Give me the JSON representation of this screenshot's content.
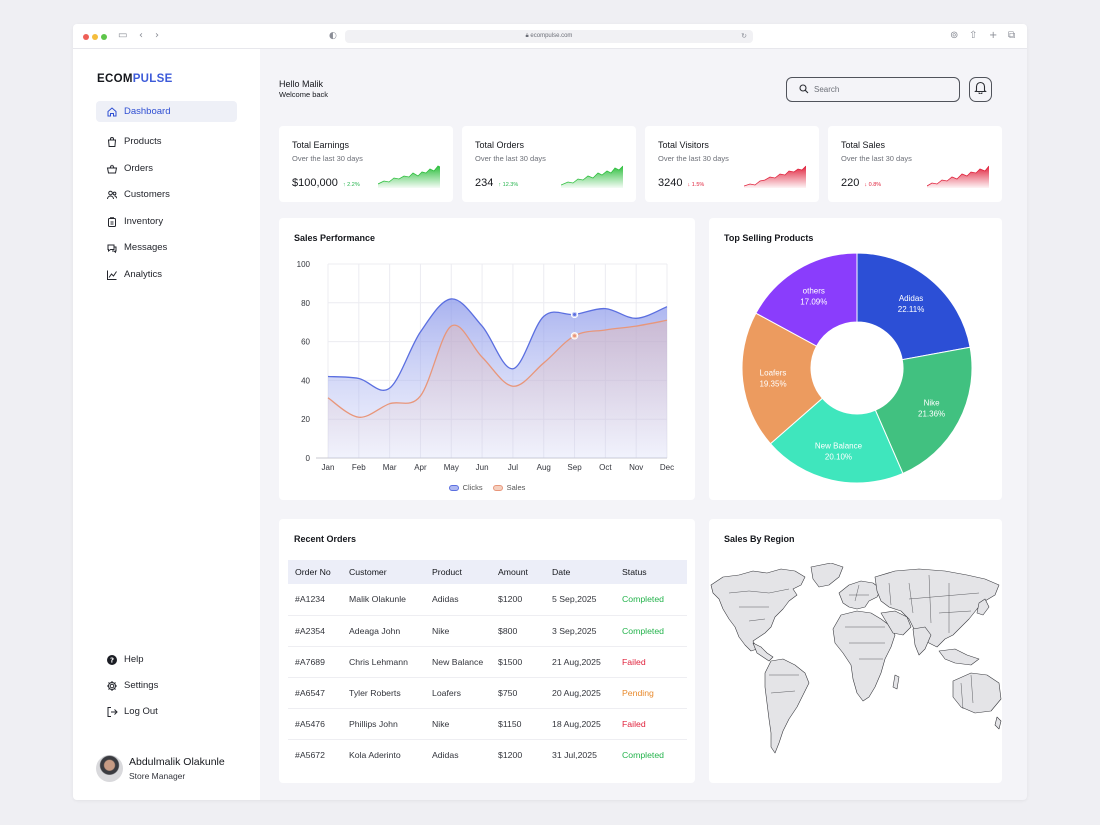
{
  "browser": {
    "url": "ecompulse.com"
  },
  "brand": {
    "prefix": "ECOM",
    "suffix": "PULSE"
  },
  "nav": {
    "main": [
      {
        "label": "Dashboard",
        "icon": "home-icon",
        "active": true
      },
      {
        "label": "Products",
        "icon": "bag-icon"
      },
      {
        "label": "Orders",
        "icon": "basket-icon"
      },
      {
        "label": "Customers",
        "icon": "users-icon"
      },
      {
        "label": "Inventory",
        "icon": "clipboard-icon"
      },
      {
        "label": "Messages",
        "icon": "chat-icon"
      },
      {
        "label": "Analytics",
        "icon": "chart-line-icon"
      }
    ],
    "bottom": [
      {
        "label": "Help",
        "icon": "help-icon"
      },
      {
        "label": "Settings",
        "icon": "gear-icon"
      },
      {
        "label": "Log Out",
        "icon": "logout-icon"
      }
    ]
  },
  "profile": {
    "name": "Abdulmalik Olakunle",
    "role": "Store Manager"
  },
  "header": {
    "greeting": "Hello Malik",
    "subtitle": "Welcome back",
    "search_placeholder": "Search"
  },
  "stats": [
    {
      "title": "Total Earnings",
      "period": "Over the last 30 days",
      "value": "$100,000",
      "delta": "↑ 2.2%",
      "trend": "up",
      "color": "#2fbf3f"
    },
    {
      "title": "Total Orders",
      "period": "Over the last 30 days",
      "value": "234",
      "delta": "↑ 12.3%",
      "trend": "up",
      "color": "#2fbf3f"
    },
    {
      "title": "Total Visitors",
      "period": "Over the last 30 days",
      "value": "3240",
      "delta": "↓ 1.5%",
      "trend": "down",
      "color": "#e0233d"
    },
    {
      "title": "Total Sales",
      "period": "Over the last 30 days",
      "value": "220",
      "delta": "↓ 0.8%",
      "trend": "down",
      "color": "#e0233d"
    }
  ],
  "sales_performance": {
    "title": "Sales Performance",
    "chart_data": {
      "type": "line",
      "categories": [
        "Jan",
        "Feb",
        "Mar",
        "Apr",
        "May",
        "Jun",
        "Jul",
        "Aug",
        "Sep",
        "Oct",
        "Nov",
        "Dec"
      ],
      "ylim": [
        0,
        100
      ],
      "yticks": [
        0,
        20,
        40,
        60,
        80,
        100
      ],
      "grid": true,
      "legend": "bottom",
      "series": [
        {
          "name": "Clicks",
          "color": "#5b6fe0",
          "values": [
            42,
            41,
            36,
            65,
            82,
            68,
            46,
            73,
            74,
            77,
            72,
            78
          ]
        },
        {
          "name": "Sales",
          "color": "#e8967a",
          "values": [
            31,
            21,
            28,
            32,
            68,
            52,
            37,
            49,
            63,
            66,
            68,
            71
          ]
        }
      ]
    }
  },
  "top_selling": {
    "title": "Top Selling Products",
    "chart_data": {
      "type": "pie",
      "donut": true,
      "slices": [
        {
          "label": "Adidas",
          "value": 22.11,
          "display": "22.11%",
          "color": "#2c4fd6"
        },
        {
          "label": "Nike",
          "value": 21.36,
          "display": "21.36%",
          "color": "#41c180"
        },
        {
          "label": "New Balance",
          "value": 20.1,
          "display": "20.10%",
          "color": "#3fe6bd"
        },
        {
          "label": "Loafers",
          "value": 19.35,
          "display": "19.35%",
          "color": "#ec9b5f"
        },
        {
          "label": "others",
          "value": 17.09,
          "display": "17.09%",
          "color": "#8a3dfc"
        }
      ]
    }
  },
  "recent_orders": {
    "title": "Recent Orders",
    "columns": [
      "Order No",
      "Customer",
      "Product",
      "Amount",
      "Date",
      "Status"
    ],
    "rows": [
      {
        "order": "#A1234",
        "customer": "Malik Olakunle",
        "product": "Adidas",
        "amount": "$1200",
        "date": "5 Sep,2025",
        "status": "Completed"
      },
      {
        "order": "#A2354",
        "customer": "Adeaga John",
        "product": "Nike",
        "amount": "$800",
        "date": "3 Sep,2025",
        "status": "Completed"
      },
      {
        "order": "#A7689",
        "customer": "Chris Lehmann",
        "product": "New Balance",
        "amount": "$1500",
        "date": "21 Aug,2025",
        "status": "Failed"
      },
      {
        "order": "#A6547",
        "customer": "Tyler Roberts",
        "product": "Loafers",
        "amount": "$750",
        "date": "20 Aug,2025",
        "status": "Pending"
      },
      {
        "order": "#A5476",
        "customer": "Phillips John",
        "product": "Nike",
        "amount": "$1150",
        "date": "18 Aug,2025",
        "status": "Failed"
      },
      {
        "order": "#A5672",
        "customer": "Kola Aderinto",
        "product": "Adidas",
        "amount": "$1200",
        "date": "31 Jul,2025",
        "status": "Completed"
      }
    ]
  },
  "sales_region": {
    "title": "Sales By Region"
  }
}
